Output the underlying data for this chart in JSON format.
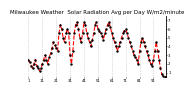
{
  "title": "Milwaukee Weather  Solar Radiation Avg per Day W/m2/minute",
  "yticks": [
    1,
    2,
    3,
    4,
    5,
    6,
    7
  ],
  "ylim": [
    0.5,
    7.5
  ],
  "xlim": [
    0,
    99
  ],
  "background_color": "#ffffff",
  "line_color": "#ff0000",
  "line_style": "--",
  "line_width": 0.8,
  "marker": ".",
  "marker_color": "#000000",
  "marker_size": 1.5,
  "grid_color": "#bbbbbb",
  "grid_style": ":",
  "values": [
    2.5,
    2.2,
    1.8,
    1.5,
    2.0,
    2.5,
    1.8,
    1.5,
    1.2,
    1.5,
    2.0,
    2.5,
    3.0,
    2.5,
    2.0,
    2.8,
    3.2,
    3.8,
    4.5,
    4.2,
    3.8,
    3.5,
    5.5,
    6.5,
    6.0,
    5.0,
    4.5,
    5.5,
    6.0,
    5.5,
    3.0,
    2.0,
    3.5,
    5.5,
    6.5,
    6.8,
    6.0,
    5.0,
    4.5,
    5.5,
    6.8,
    6.5,
    5.5,
    5.0,
    4.5,
    4.0,
    4.8,
    5.5,
    6.5,
    6.8,
    6.0,
    5.8,
    5.5,
    5.2,
    4.8,
    5.5,
    6.0,
    6.5,
    6.8,
    6.2,
    5.5,
    5.0,
    4.5,
    4.0,
    3.5,
    4.0,
    4.5,
    5.0,
    5.5,
    5.8,
    6.0,
    5.5,
    5.0,
    4.5,
    4.0,
    3.5,
    3.0,
    2.8,
    2.5,
    2.0,
    3.5,
    4.5,
    5.0,
    4.5,
    4.0,
    3.5,
    3.0,
    2.5,
    2.0,
    1.8,
    2.5,
    3.5,
    4.5,
    3.5,
    2.5,
    1.5,
    0.8,
    0.6,
    0.5,
    0.5
  ],
  "xtick_positions": [
    0,
    10,
    20,
    30,
    40,
    50,
    60,
    70,
    80,
    90
  ],
  "xtick_labels": [
    "1",
    "11",
    "21",
    "31",
    "41",
    "51",
    "61",
    "71",
    "81",
    "91"
  ],
  "title_fontsize": 4.0,
  "tick_fontsize": 2.8
}
